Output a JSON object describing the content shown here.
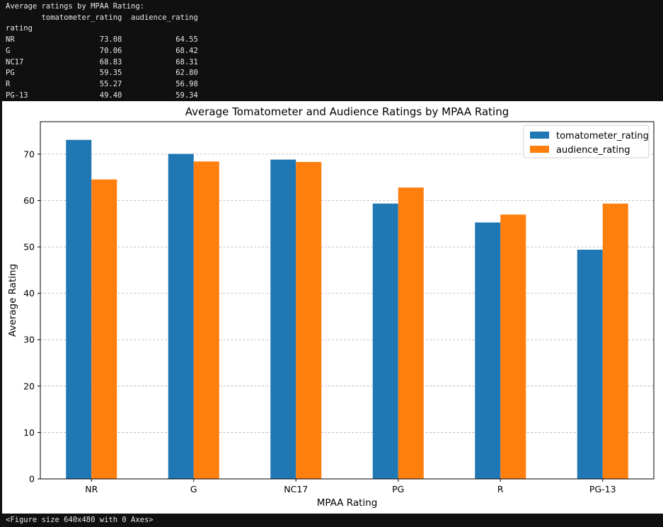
{
  "console": {
    "lines": [
      "Average ratings by MPAA Rating:",
      "        tomatometer_rating  audience_rating",
      "rating",
      "NR                   73.08            64.55",
      "G                    70.06            68.42",
      "NC17                 68.83            68.31",
      "PG                   59.35            62.80",
      "R                    55.27            56.98",
      "PG-13                49.40            59.34"
    ]
  },
  "footer": {
    "text": "<Figure size 640x480 with 0 Axes>"
  },
  "chart_data": {
    "type": "bar",
    "title": "Average Tomatometer and Audience Ratings by MPAA Rating",
    "xlabel": "MPAA Rating",
    "ylabel": "Average Rating",
    "categories": [
      "NR",
      "G",
      "NC17",
      "PG",
      "R",
      "PG-13"
    ],
    "series": [
      {
        "name": "tomatometer_rating",
        "values": [
          73.08,
          70.06,
          68.83,
          59.35,
          55.27,
          49.4
        ],
        "color": "#1f77b4"
      },
      {
        "name": "audience_rating",
        "values": [
          64.55,
          68.42,
          68.31,
          62.8,
          56.98,
          59.34
        ],
        "color": "#ff7f0e"
      }
    ],
    "ylim": [
      0,
      77
    ],
    "yticks": [
      0,
      10,
      20,
      30,
      40,
      50,
      60,
      70
    ],
    "grid": "y, dashed",
    "legend_position": "top-right"
  }
}
